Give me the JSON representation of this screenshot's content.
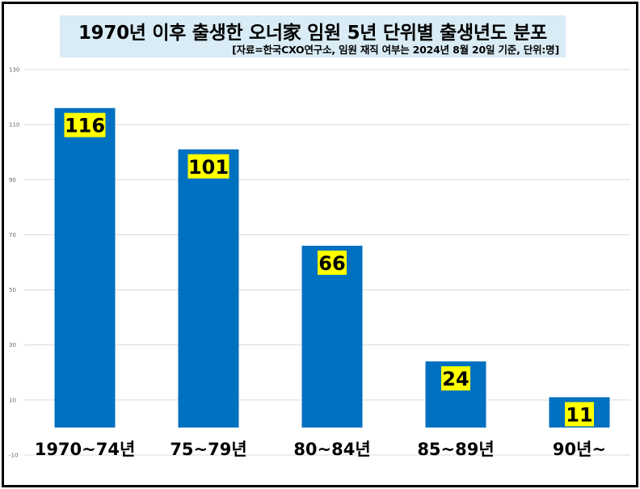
{
  "title": "1970년 이후 출생한 오너家 임원 5년 단위별 출생년도 분포",
  "subtitle": "[자료=한국CXO연구소, 임원 재직 여부는 2024년 8월 20일 기준, 단위:명]",
  "chart_data": {
    "type": "bar",
    "categories": [
      "1970~74년",
      "75~79년",
      "80~84년",
      "85~89년",
      "90년~"
    ],
    "values": [
      116,
      101,
      66,
      24,
      11
    ],
    "ylim": [
      -10,
      130
    ],
    "yticks": [
      -10,
      10,
      30,
      50,
      70,
      90,
      110,
      130
    ],
    "grid": true,
    "bar_color": "#0070c0",
    "label_bg": "#ffff00"
  }
}
